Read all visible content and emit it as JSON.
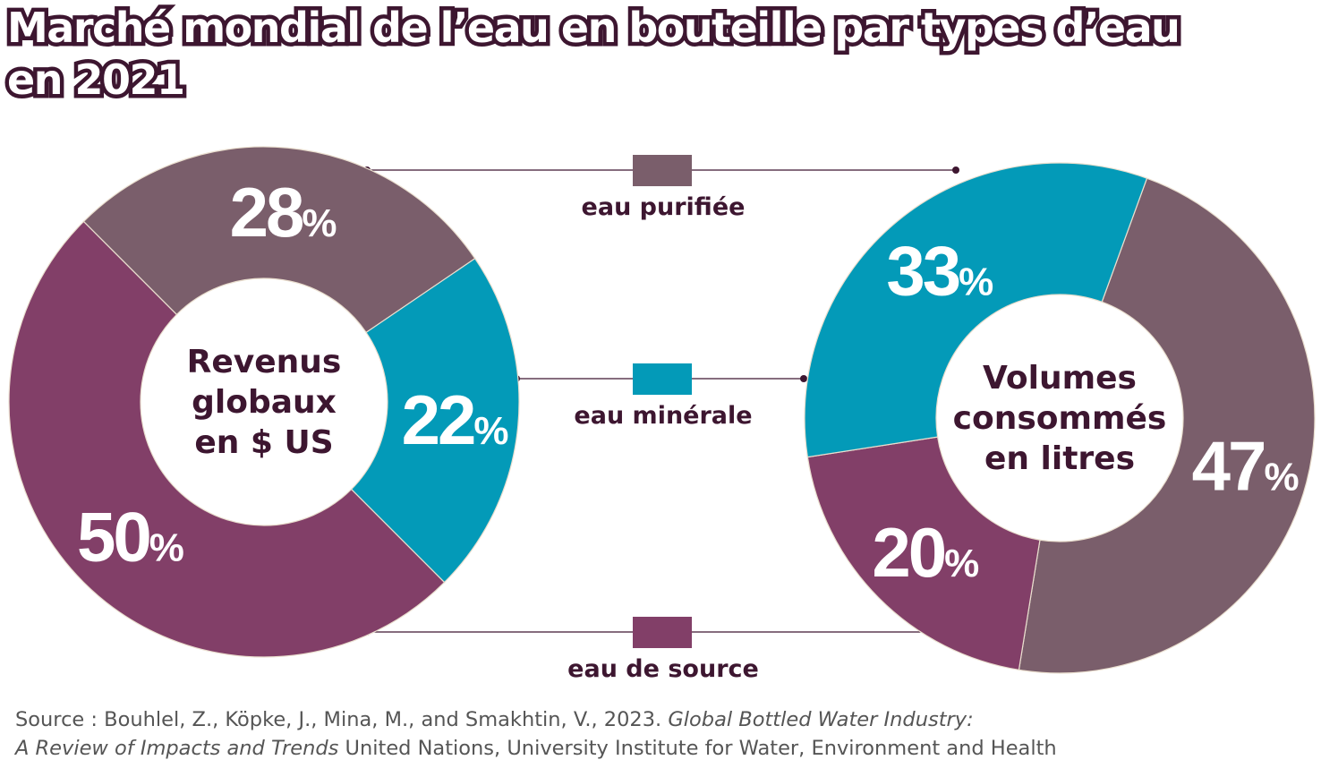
{
  "title": {
    "line1": "Marché mondial de l’eau en bouteille par types d’eau",
    "line2": "en 2021"
  },
  "colors": {
    "eau_purifiee": "#7a5e6b",
    "eau_minerale": "#039ab8",
    "eau_de_source": "#823f68",
    "text_dark": "#3d1630"
  },
  "legend": [
    {
      "key": "eau_purifiee",
      "label": "eau purifiée"
    },
    {
      "key": "eau_minerale",
      "label": "eau minérale"
    },
    {
      "key": "eau_de_source",
      "label": "eau de source"
    }
  ],
  "chart_data": [
    {
      "type": "pie",
      "center_label": [
        "Revenus",
        "globaux",
        "en $ US"
      ],
      "slices": [
        {
          "name": "eau purifiée",
          "key": "eau_purifiee",
          "value": 28,
          "label": "28%"
        },
        {
          "name": "eau minérale",
          "key": "eau_minerale",
          "value": 22,
          "label": "22%"
        },
        {
          "name": "eau de source",
          "key": "eau_de_source",
          "value": 50,
          "label": "50%"
        }
      ]
    },
    {
      "type": "pie",
      "center_label": [
        "Volumes",
        "consommés",
        "en litres"
      ],
      "slices": [
        {
          "name": "eau purifiée",
          "key": "eau_purifiee",
          "value": 47,
          "label": "47%"
        },
        {
          "name": "eau de source",
          "key": "eau_de_source",
          "value": 20,
          "label": "20%"
        },
        {
          "name": "eau minérale",
          "key": "eau_minerale",
          "value": 33,
          "label": "33%"
        }
      ]
    }
  ],
  "source": {
    "prefix": "Source : Bouhlel, Z., Köpke, J., Mina, M., and Smakhtin, V., 2023. ",
    "title_part1": "Global Bottled Water Industry:",
    "title_part2": "A Review of Impacts and Trends",
    "suffix": " United Nations, University Institute for Water, Environment and Health"
  }
}
